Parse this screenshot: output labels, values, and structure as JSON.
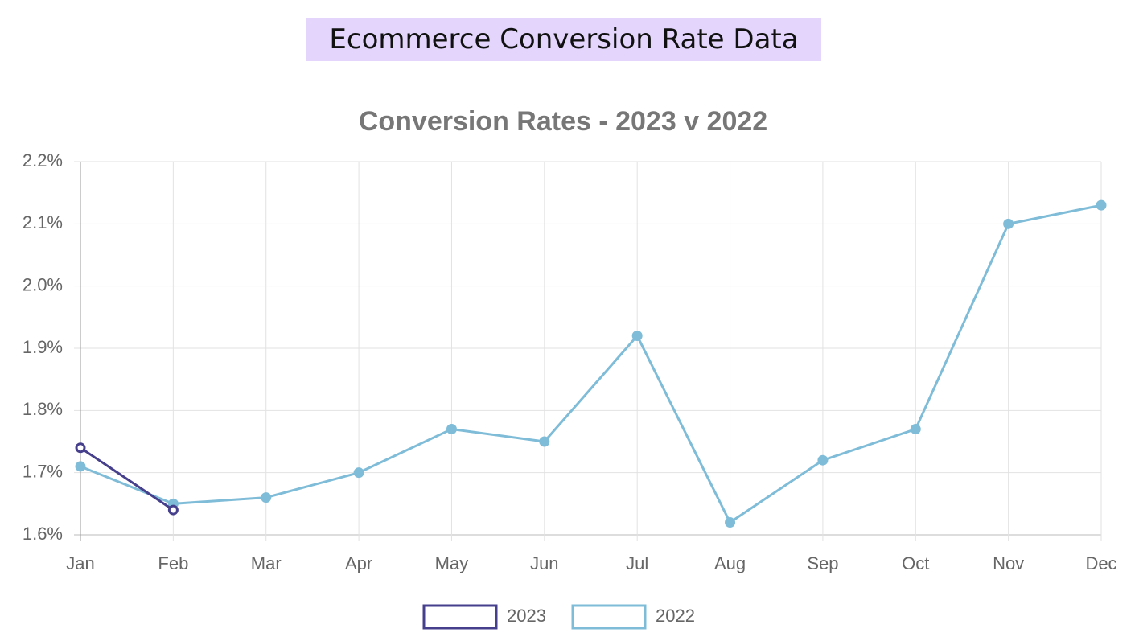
{
  "header": {
    "title": "Ecommerce Conversion Rate Data"
  },
  "chart_data": {
    "type": "line",
    "title": "Conversion Rates - 2023 v 2022",
    "categories": [
      "Jan",
      "Feb",
      "Mar",
      "Apr",
      "May",
      "Jun",
      "Jul",
      "Aug",
      "Sep",
      "Oct",
      "Nov",
      "Dec"
    ],
    "series": [
      {
        "name": "2023",
        "color": "#463f8c",
        "values": [
          1.74,
          1.64,
          null,
          null,
          null,
          null,
          null,
          null,
          null,
          null,
          null,
          null
        ]
      },
      {
        "name": "2022",
        "color": "#7fbcd8",
        "values": [
          1.71,
          1.65,
          1.66,
          1.7,
          1.77,
          1.75,
          1.92,
          1.62,
          1.72,
          1.77,
          2.1,
          2.13
        ]
      }
    ],
    "ylim": [
      1.6,
      2.2
    ],
    "yticks": [
      {
        "value": 1.6,
        "label": "1.6%"
      },
      {
        "value": 1.7,
        "label": "1.7%"
      },
      {
        "value": 1.8,
        "label": "1.8%"
      },
      {
        "value": 1.9,
        "label": "1.9%"
      },
      {
        "value": 2.0,
        "label": "2.0%"
      },
      {
        "value": 2.1,
        "label": "2.1%"
      },
      {
        "value": 2.2,
        "label": "2.2%"
      }
    ],
    "grid": true,
    "legend": "bottom"
  }
}
